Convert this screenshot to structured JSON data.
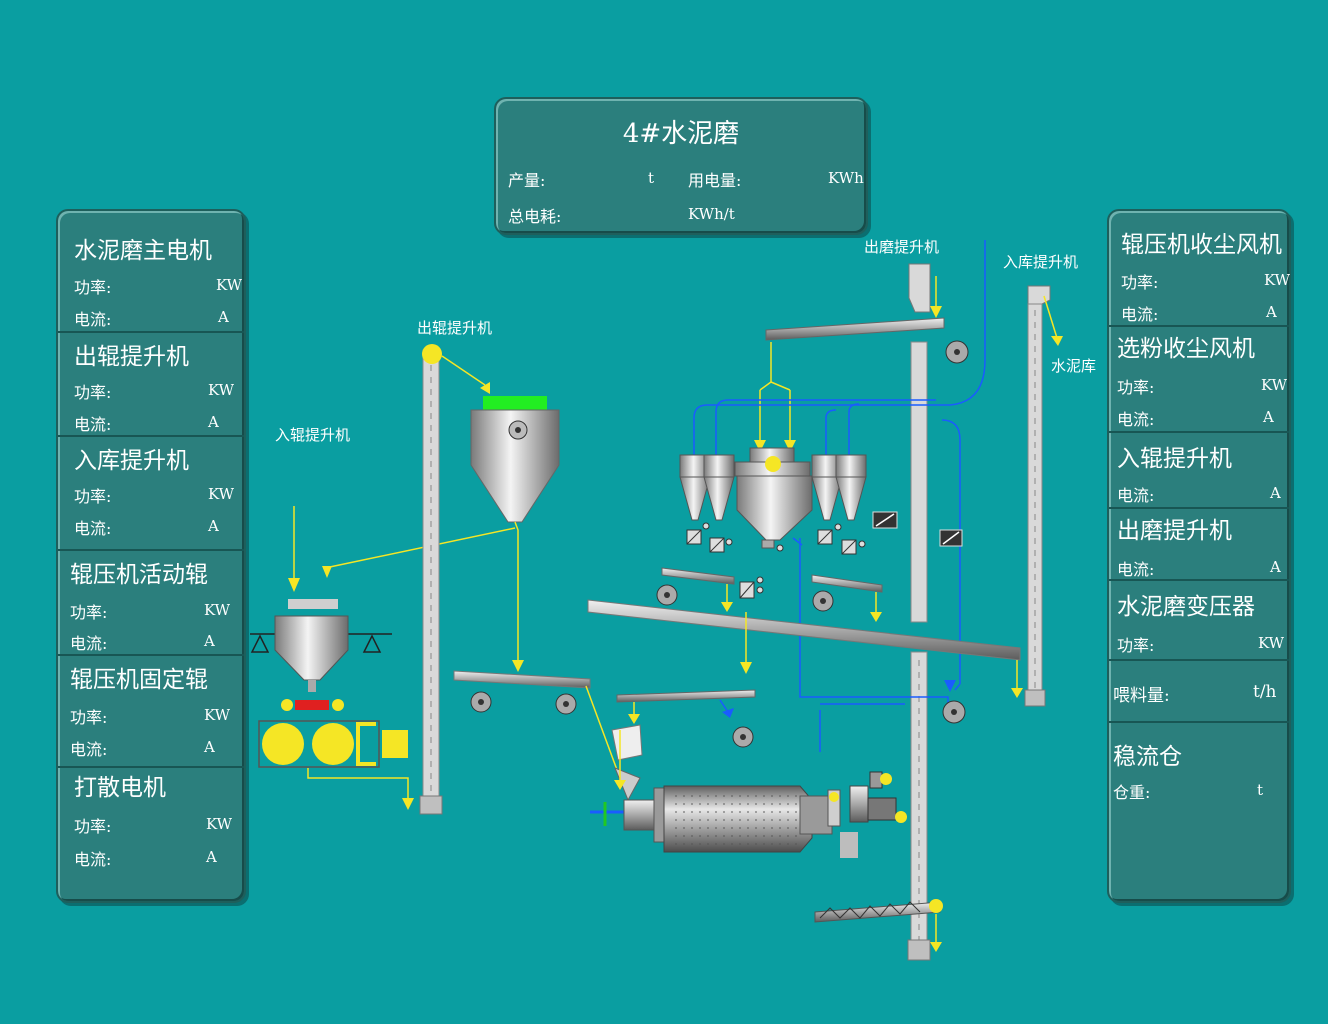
{
  "header": {
    "title": "4#水泥磨",
    "output_label": "产量:",
    "output_unit": "t",
    "power_use_label": "用电量:",
    "power_use_unit": "KWh",
    "total_power_label": "总电耗:",
    "total_power_unit": "KWh/t"
  },
  "left_panel": {
    "sections": [
      {
        "title": "水泥磨主电机",
        "power_label": "功率:",
        "power_unit": "KW",
        "current_label": "电流:",
        "current_unit": "A"
      },
      {
        "title": "出辊提升机",
        "power_label": "功率:",
        "power_unit": "KW",
        "current_label": "电流:",
        "current_unit": "A"
      },
      {
        "title": "入库提升机",
        "power_label": "功率:",
        "power_unit": "KW",
        "current_label": "电流:",
        "current_unit": "A"
      },
      {
        "title": "辊压机活动辊",
        "power_label": "功率:",
        "power_unit": "KW",
        "current_label": "电流:",
        "current_unit": "A"
      },
      {
        "title": "辊压机固定辊",
        "power_label": "功率:",
        "power_unit": "KW",
        "current_label": "电流:",
        "current_unit": "A"
      },
      {
        "title": "打散电机",
        "power_label": "功率:",
        "power_unit": "KW",
        "current_label": "电流:",
        "current_unit": "A"
      }
    ]
  },
  "right_panel": {
    "roller_dust_fan": {
      "title": "辊压机收尘风机",
      "power_label": "功率:",
      "power_unit": "KW",
      "current_label": "电流:",
      "current_unit": "A"
    },
    "separator_dust_fan": {
      "title": "选粉收尘风机",
      "power_label": "功率:",
      "power_unit": "KW",
      "current_label": "电流:",
      "current_unit": "A"
    },
    "roller_in_elevator": {
      "title": "入辊提升机",
      "current_label": "电流:",
      "current_unit": "A"
    },
    "mill_out_elevator": {
      "title": "出磨提升机",
      "current_label": "电流:",
      "current_unit": "A"
    },
    "mill_transformer": {
      "title": "水泥磨变压器",
      "power_label": "功率:",
      "power_unit": "KW"
    },
    "feed": {
      "label": "喂料量:",
      "unit": "t/h"
    },
    "buffer_bin": {
      "title": "稳流仓",
      "weight_label": "仓重:",
      "weight_unit": "t"
    }
  },
  "diagram_labels": {
    "roller_out_elevator": "出辊提升机",
    "roller_in_elevator": "入辊提升机",
    "mill_out_elevator": "出磨提升机",
    "storage_elevator": "入库提升机",
    "cement_silo": "水泥库"
  },
  "colors": {
    "background": "#0a9ea1",
    "panel": "#2b7f7d",
    "material_flow": "#f5e625",
    "air_flow": "#1a5cff",
    "equipment": "#c8c8c8"
  }
}
